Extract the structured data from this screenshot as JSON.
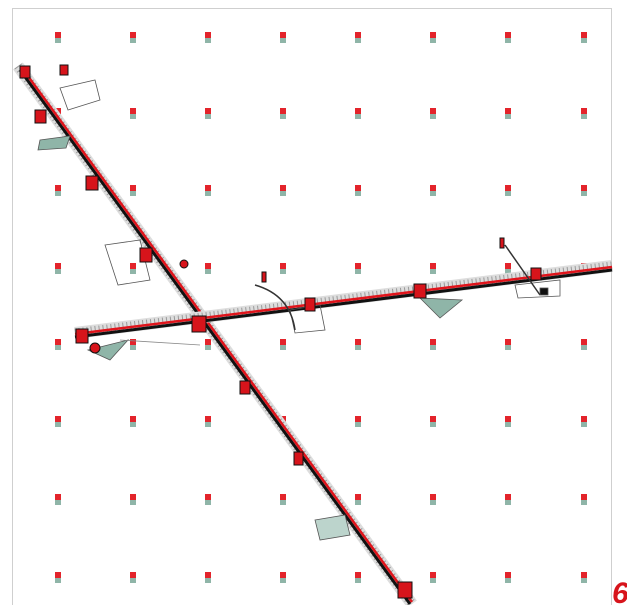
{
  "label": "6"
}
